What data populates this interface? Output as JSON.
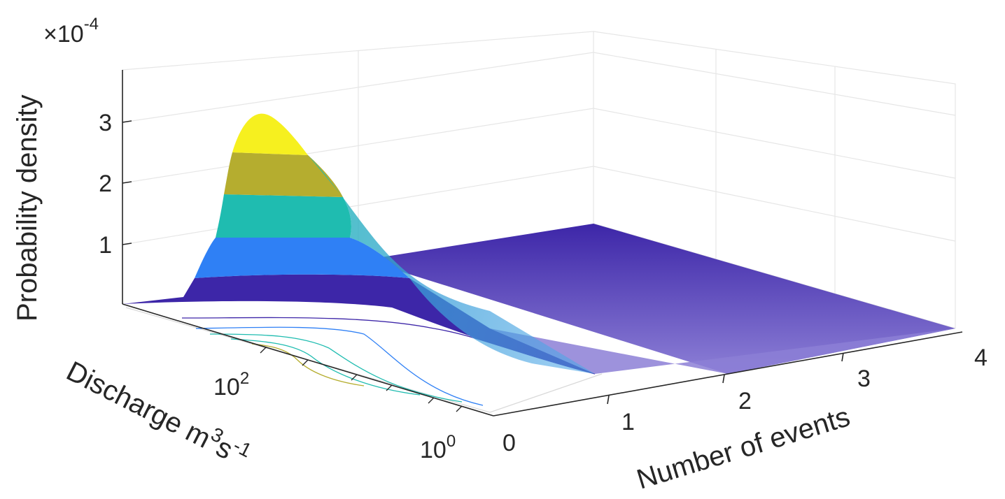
{
  "chart_data": {
    "type": "surface",
    "title": "",
    "exponent_label": "×10",
    "exponent_power": "-4",
    "zlabel": "Probability density",
    "xlabel": "Number of events",
    "ylabel_main": "Discharge m",
    "ylabel_sup1": "3",
    "ylabel_mid": "s",
    "ylabel_sup2": "-1",
    "x_ticks": [
      "0",
      "1",
      "2",
      "3",
      "4"
    ],
    "y_ticks": [
      {
        "base": "10",
        "exp": "0"
      },
      {
        "base": "10",
        "exp": "2"
      }
    ],
    "z_ticks": [
      "1",
      "2",
      "3"
    ],
    "xlim": [
      0,
      4
    ],
    "ylim_log10": [
      0,
      3
    ],
    "zlim": [
      0,
      0.00035
    ],
    "y_scale": "log",
    "grid": true,
    "peak": {
      "events": 0,
      "discharge_log10": 2.7,
      "density": 0.00031
    },
    "contour_bands": [
      3.5e-05,
      0.0001,
      0.00016,
      0.00024,
      0.0003
    ],
    "colors": {
      "band_0": "#3d26a8",
      "band_1": "#2f80f5",
      "band_2": "#1fbcb0",
      "band_3": "#b5ad2f",
      "band_4": "#f6f01f",
      "plateau": "#3d26a8",
      "axis": "#262626",
      "grid": "#e6e6e6"
    }
  }
}
